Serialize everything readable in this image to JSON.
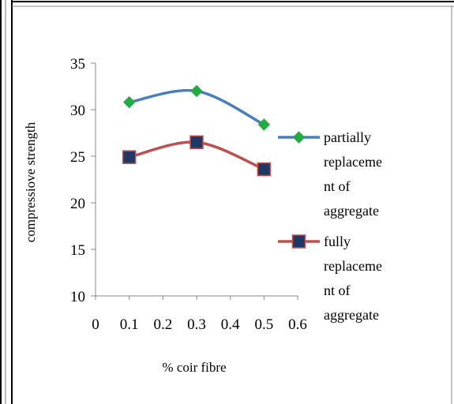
{
  "chart_data": {
    "type": "line",
    "title": "",
    "xlabel": "% coir fibre",
    "ylabel": "compressiove strength",
    "x_ticks": [
      "0",
      "0.1",
      "0.2",
      "0.3",
      "0.4",
      "0.5",
      "0.6"
    ],
    "y_ticks": [
      "10",
      "15",
      "20",
      "25",
      "30",
      "35"
    ],
    "xlim": [
      0,
      0.6
    ],
    "ylim": [
      10,
      35
    ],
    "grid": false,
    "legend_position": "right",
    "x": [
      0.1,
      0.3,
      0.5
    ],
    "series": [
      {
        "name": "partially replacement of aggregate",
        "legend_lines": [
          "partially",
          "replaceme",
          "nt of",
          "aggregate"
        ],
        "values": [
          30.8,
          32.0,
          28.4
        ],
        "color": "#4a7ebb",
        "marker": "diamond",
        "marker_color": "#22aa44"
      },
      {
        "name": "fully replacement of aggregate",
        "legend_lines": [
          "fully",
          "replaceme",
          "nt of",
          "aggregate"
        ],
        "values": [
          24.9,
          26.5,
          23.6
        ],
        "color": "#c0504d",
        "marker": "square",
        "marker_color": "#1f3864"
      }
    ]
  }
}
